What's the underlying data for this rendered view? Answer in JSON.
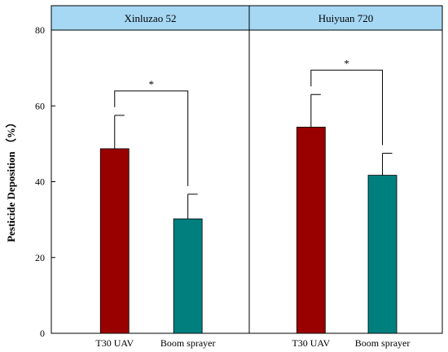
{
  "chart_data": {
    "type": "bar",
    "ylabel": "Pesticide Deposition （%）",
    "ylim": [
      0,
      80
    ],
    "yticks": [
      0,
      20,
      40,
      60,
      80
    ],
    "grid": false,
    "significance_label": "*",
    "colors": {
      "header_fill": "#a6d8f4",
      "T30 UAV": "#990000",
      "Boom sprayer": "#007f7f"
    },
    "panels": [
      {
        "title": "Xinluzao 52",
        "categories": [
          "T30 UAV",
          "Boom sprayer"
        ],
        "values": [
          48.7,
          30.2
        ],
        "errors": [
          8.8,
          6.5
        ]
      },
      {
        "title": "Huiyuan 720",
        "categories": [
          "T30 UAV",
          "Boom sprayer"
        ],
        "values": [
          54.4,
          41.7
        ],
        "errors": [
          8.6,
          5.8
        ]
      }
    ]
  }
}
